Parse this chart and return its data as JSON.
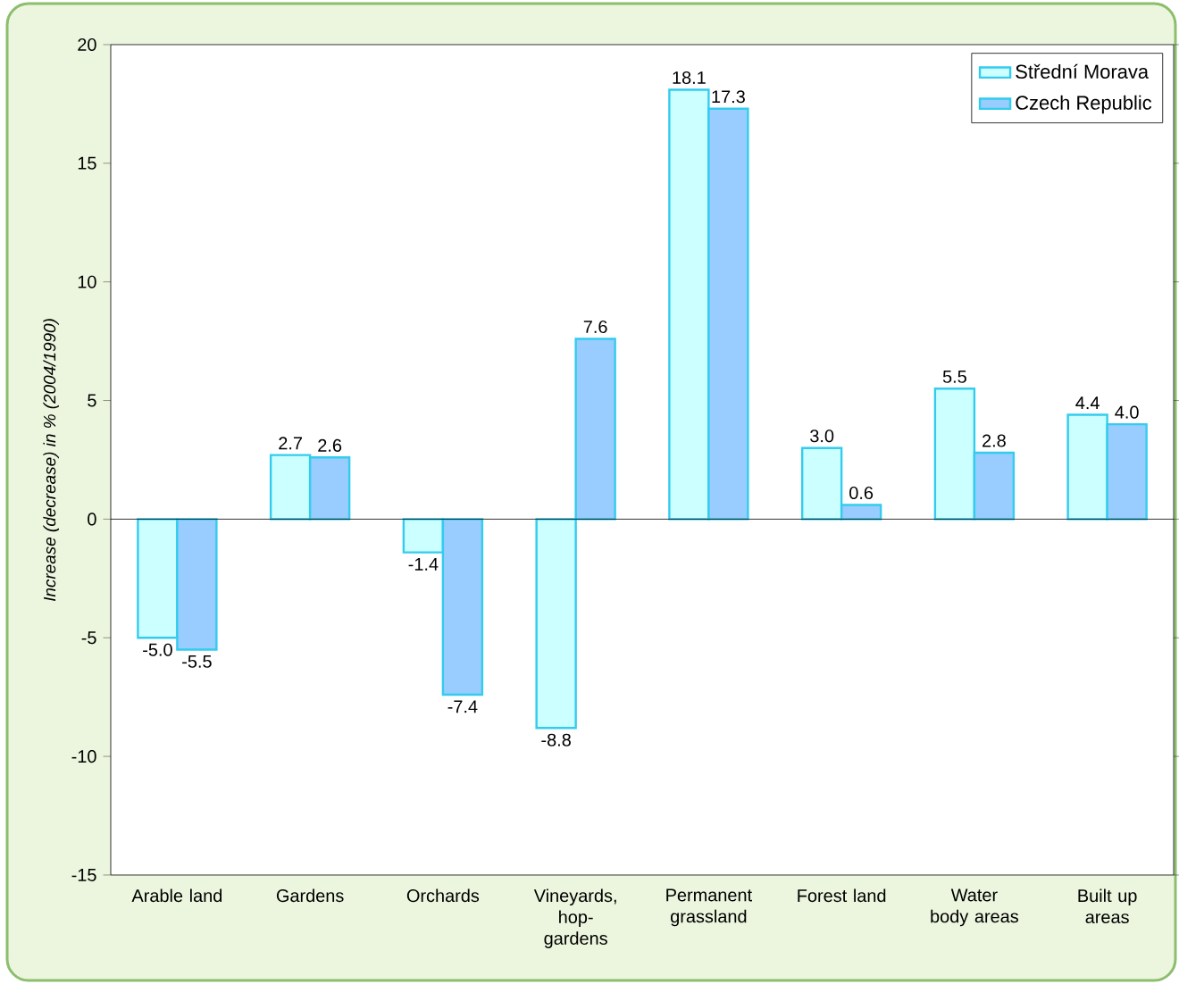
{
  "chart_data": {
    "type": "bar",
    "ylabel": "Increase (decrease) in  % (2004/1990)",
    "categories": [
      "Arable land",
      "Gardens",
      "Orchards",
      "Vineyards, hop-gardens",
      "Permanent grassland",
      "Forest land",
      "Water body areas",
      "Built up areas"
    ],
    "series": [
      {
        "name": "Střední Morava",
        "color": "#ccffff",
        "values": [
          -5.0,
          2.7,
          -1.4,
          -8.8,
          18.1,
          3.0,
          5.5,
          4.4
        ],
        "value_labels": [
          "-5.0",
          "2.7",
          "-1.4",
          "-8.8",
          "18.1",
          "3.0",
          "5.5",
          "4.4"
        ]
      },
      {
        "name": "Czech Republic",
        "color": "#99ccff",
        "values": [
          -5.5,
          2.6,
          -7.4,
          7.6,
          17.3,
          0.6,
          2.8,
          4.0
        ],
        "value_labels": [
          "-5.5",
          "2.6",
          "-7.4",
          "7.6",
          "17.3",
          "0.6",
          "2.8",
          "4.0"
        ]
      }
    ],
    "ylim": [
      -15,
      20
    ],
    "yticks": [
      -15,
      -10,
      -5,
      0,
      5,
      10,
      15,
      20
    ],
    "legend": "top right"
  }
}
